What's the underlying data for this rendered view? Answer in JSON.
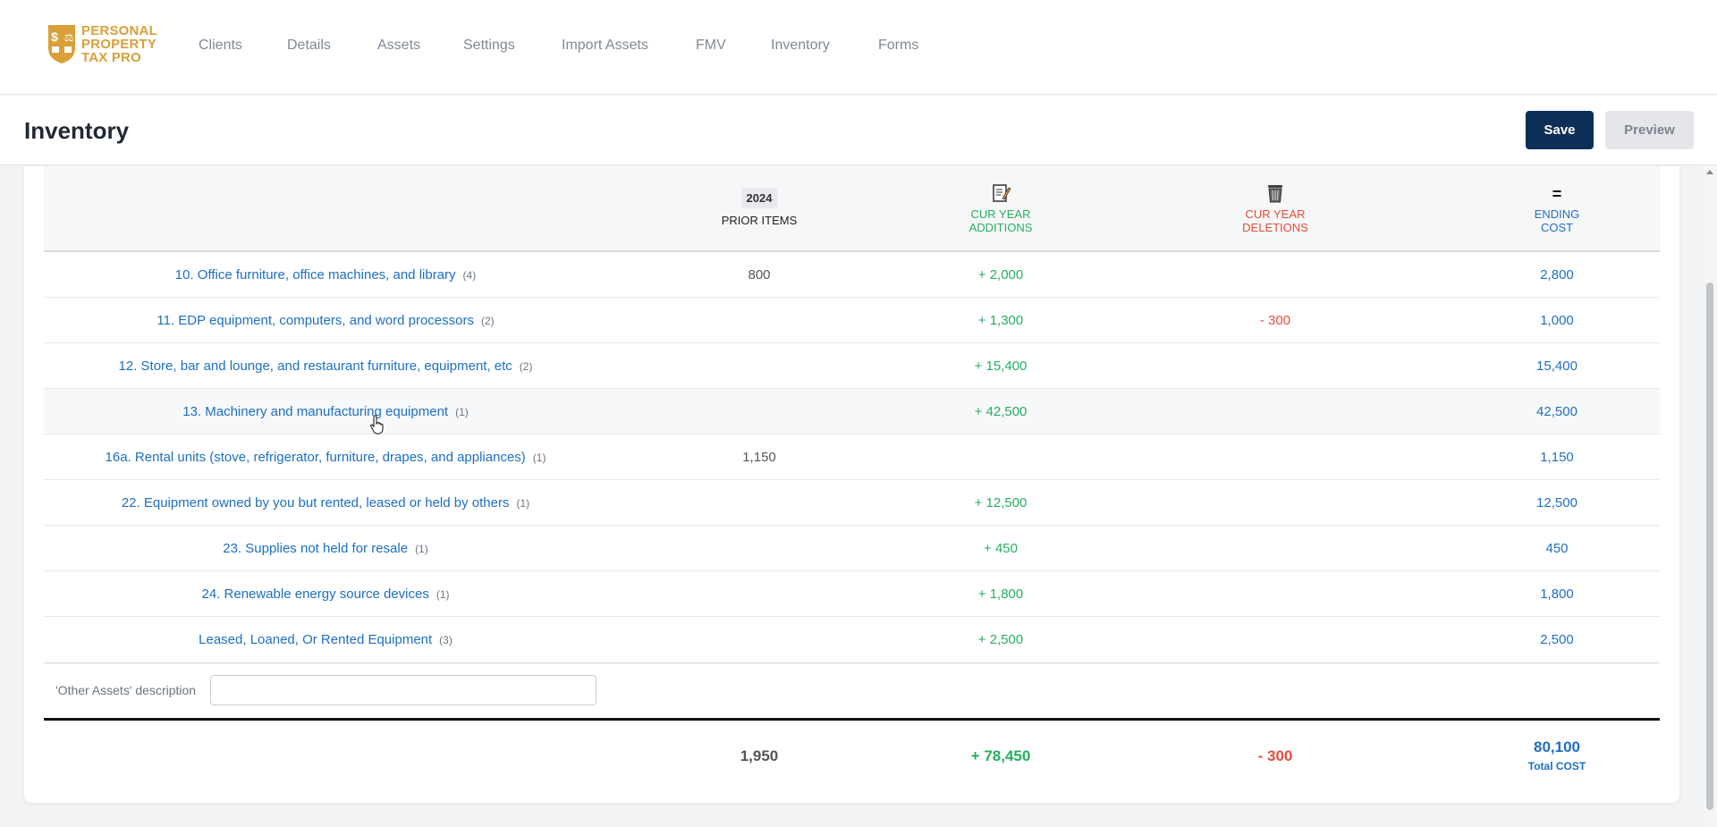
{
  "brand": {
    "logo_text_1": "PERSONAL",
    "logo_text_2": "PROPERTY",
    "logo_text_3": "TAX PRO",
    "logo_glyph_1": "$",
    "logo_glyph_2": "⚖",
    "accent": "#d9a03a"
  },
  "nav": [
    {
      "label": "Clients"
    },
    {
      "label": "Details"
    },
    {
      "label": "Assets"
    },
    {
      "label": "Settings"
    },
    {
      "label": "Import Assets"
    },
    {
      "label": "FMV"
    },
    {
      "label": "Inventory"
    },
    {
      "label": "Forms"
    }
  ],
  "page": {
    "title": "Inventory",
    "save_label": "Save",
    "preview_label": "Preview"
  },
  "table": {
    "year": "2024",
    "prior_label": "PRIOR ITEMS",
    "additions_label_1": "CUR YEAR",
    "additions_label_2": "ADDITIONS",
    "deletions_label_1": "CUR YEAR",
    "deletions_label_2": "DELETIONS",
    "ending_symbol": "=",
    "ending_label_1": "ENDING",
    "ending_label_2": "COST",
    "rows": [
      {
        "desc": "10. Office furniture, office machines, and library",
        "count": "(4)",
        "prior": "800",
        "add": "+ 2,000",
        "del": "",
        "end": "2,800"
      },
      {
        "desc": "11. EDP equipment, computers, and word processors",
        "count": "(2)",
        "prior": "",
        "add": "+ 1,300",
        "del": "- 300",
        "end": "1,000"
      },
      {
        "desc": "12. Store, bar and lounge, and restaurant furniture, equipment, etc",
        "count": "(2)",
        "prior": "",
        "add": "+ 15,400",
        "del": "",
        "end": "15,400"
      },
      {
        "desc": "13. Machinery and manufacturing equipment",
        "count": "(1)",
        "prior": "",
        "add": "+ 42,500",
        "del": "",
        "end": "42,500"
      },
      {
        "desc": "16a. Rental units (stove, refrigerator, furniture, drapes, and appliances)",
        "count": "(1)",
        "prior": "1,150",
        "add": "",
        "del": "",
        "end": "1,150"
      },
      {
        "desc": "22. Equipment owned by you but rented, leased or held by others",
        "count": "(1)",
        "prior": "",
        "add": "+ 12,500",
        "del": "",
        "end": "12,500"
      },
      {
        "desc": "23. Supplies not held for resale",
        "count": "(1)",
        "prior": "",
        "add": "+ 450",
        "del": "",
        "end": "450"
      },
      {
        "desc": "24. Renewable energy source devices",
        "count": "(1)",
        "prior": "",
        "add": "+ 1,800",
        "del": "",
        "end": "1,800"
      },
      {
        "desc": "Leased, Loaned, Or Rented Equipment",
        "count": "(3)",
        "prior": "",
        "add": "+ 2,500",
        "del": "",
        "end": "2,500"
      }
    ],
    "other_label": "'Other Assets' description",
    "other_value": "",
    "totals": {
      "prior": "1,950",
      "add": "+ 78,450",
      "del": "- 300",
      "end": "80,100",
      "end_sub": "Total COST"
    }
  },
  "icons": {
    "additions": "edit-note-icon",
    "deletions": "trash-can-icon",
    "cursor": "hand-pointer-icon"
  },
  "colors": {
    "save_bg": "#0d2f57",
    "add_green": "#27ae60",
    "del_red": "#e74c3c",
    "link_blue": "#1d6fc2"
  }
}
